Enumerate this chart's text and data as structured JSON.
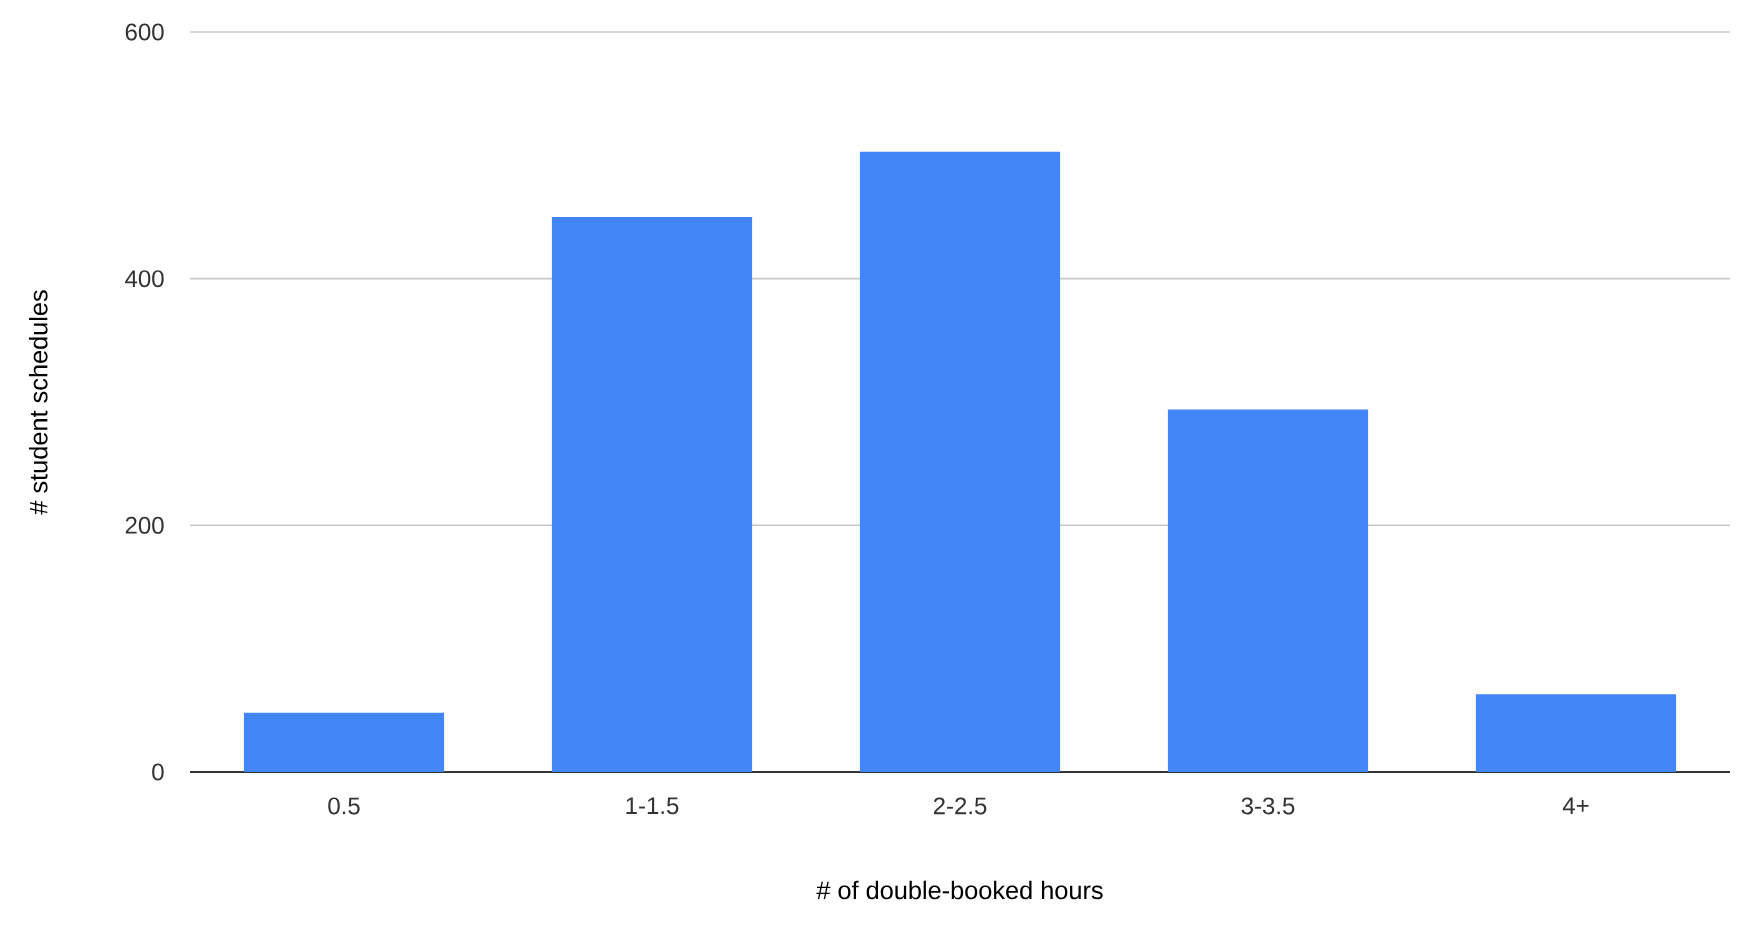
{
  "chart_data": {
    "type": "bar",
    "xlabel": "# of double-booked hours",
    "ylabel": "# student schedules",
    "categories": [
      "0.5",
      "1-1.5",
      "2-2.5",
      "3-3.5",
      "4+"
    ],
    "values": [
      48,
      450,
      503,
      294,
      63
    ],
    "color": "#4285f4",
    "ylim": [
      0,
      600
    ],
    "yticks": [
      0,
      200,
      400,
      600
    ],
    "grid": "y"
  }
}
